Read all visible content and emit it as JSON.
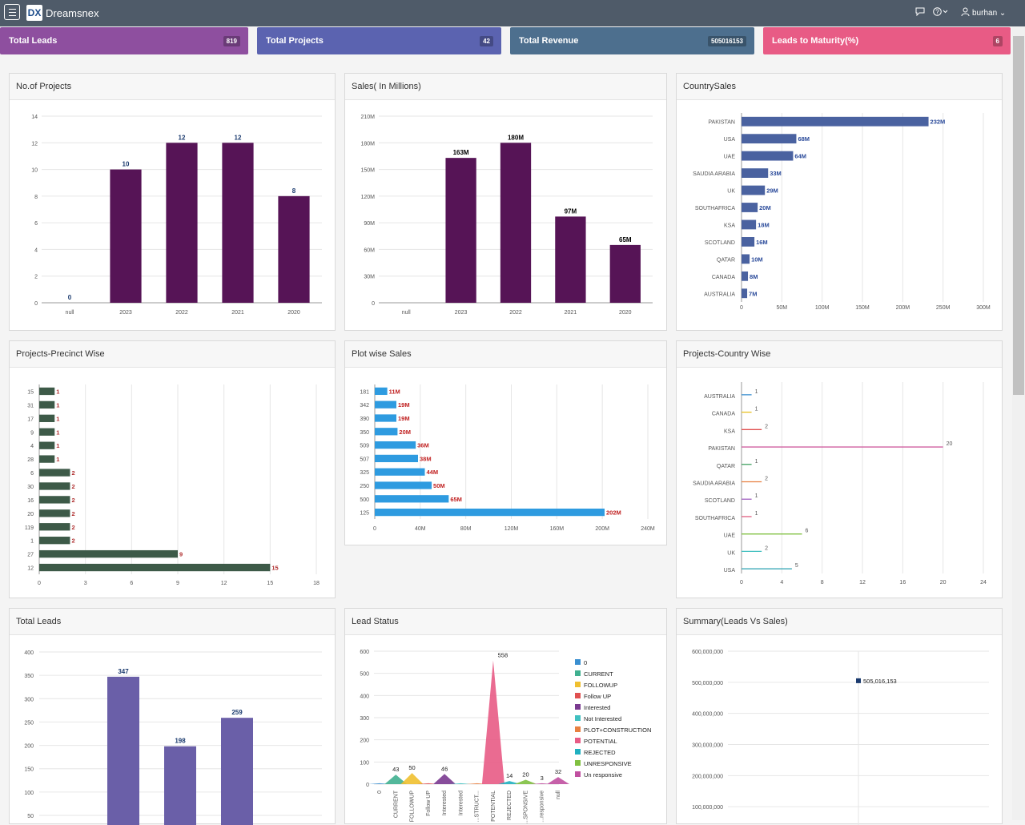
{
  "header": {
    "brand": "Dreamsnex",
    "logo_text": "DX",
    "user": "burhan",
    "icons": [
      "menu-icon",
      "chat-icon",
      "help-icon",
      "user-icon"
    ]
  },
  "kpis": [
    {
      "label": "Total Leads",
      "value": "819",
      "color": "#8e4f9f"
    },
    {
      "label": "Total Projects",
      "value": "42",
      "color": "#5b63b0"
    },
    {
      "label": "Total Revenue",
      "value": "505016153",
      "color": "#4d6f8e"
    },
    {
      "label": "Leads to Maturity(%)",
      "value": "6",
      "color": "#e85b85"
    }
  ],
  "panels": {
    "projects": "No.of Projects",
    "sales": "Sales( In Millions)",
    "country_sales": "CountrySales",
    "precinct": "Projects-Precinct Wise",
    "plot_sales": "Plot wise Sales",
    "country_projects": "Projects-Country Wise",
    "total_leads": "Total Leads",
    "lead_status": "Lead Status",
    "summary": "Summary(Leads Vs Sales)"
  },
  "chart_data": [
    {
      "id": "projects",
      "type": "bar",
      "categories": [
        "null",
        "2023",
        "2022",
        "2021",
        "2020"
      ],
      "values": [
        0,
        10,
        12,
        12,
        8
      ],
      "labels": [
        "0",
        "10",
        "12",
        "12",
        "8"
      ],
      "ylim": [
        0,
        14
      ],
      "yticks": [
        "0",
        "2",
        "4",
        "6",
        "8",
        "10",
        "12",
        "14"
      ],
      "color": "#561456",
      "label_color": "#1a3a6e"
    },
    {
      "id": "sales",
      "type": "bar",
      "categories": [
        "null",
        "2023",
        "2022",
        "2021",
        "2020"
      ],
      "values": [
        0,
        163,
        180,
        97,
        65
      ],
      "labels": [
        "",
        "163M",
        "180M",
        "97M",
        "65M"
      ],
      "ylim": [
        0,
        210
      ],
      "yticks": [
        "0",
        "30M",
        "60M",
        "90M",
        "120M",
        "150M",
        "180M",
        "210M"
      ],
      "color": "#561456",
      "label_color": "#000000"
    },
    {
      "id": "country_sales",
      "type": "bar",
      "orientation": "horizontal",
      "categories": [
        "PAKISTAN",
        "USA",
        "UAE",
        "SAUDIA ARABIA",
        "UK",
        "SOUTHAFRICA",
        "KSA",
        "SCOTLAND",
        "QATAR",
        "CANADA",
        "AUSTRALIA"
      ],
      "values": [
        232,
        68,
        64,
        33,
        29,
        20,
        18,
        16,
        10,
        8,
        7
      ],
      "labels": [
        "232M",
        "68M",
        "64M",
        "33M",
        "29M",
        "20M",
        "18M",
        "16M",
        "10M",
        "8M",
        "7M"
      ],
      "xlim": [
        0,
        300
      ],
      "xticks": [
        "0",
        "50M",
        "100M",
        "150M",
        "200M",
        "250M",
        "300M"
      ],
      "color": "#4a62a0",
      "label_color": "#2a4a9a"
    },
    {
      "id": "precinct",
      "type": "bar",
      "orientation": "horizontal",
      "categories": [
        "15",
        "31",
        "17",
        "9",
        "4",
        "28",
        "6",
        "30",
        "16",
        "20",
        "119",
        "1",
        "27",
        "12"
      ],
      "values": [
        1,
        1,
        1,
        1,
        1,
        1,
        2,
        2,
        2,
        2,
        2,
        2,
        9,
        15
      ],
      "labels": [
        "1",
        "1",
        "1",
        "1",
        "1",
        "1",
        "2",
        "2",
        "2",
        "2",
        "2",
        "2",
        "9",
        "15"
      ],
      "xlim": [
        0,
        18
      ],
      "xticks": [
        "0",
        "3",
        "6",
        "9",
        "12",
        "15",
        "18"
      ],
      "color": "#3d5a48",
      "label_color": "#b03030"
    },
    {
      "id": "plot_sales",
      "type": "bar",
      "orientation": "horizontal",
      "categories": [
        "181",
        "342",
        "390",
        "350",
        "509",
        "507",
        "325",
        "250",
        "500",
        "125"
      ],
      "values": [
        11,
        19,
        19,
        20,
        36,
        38,
        44,
        50,
        65,
        202
      ],
      "labels": [
        "11M",
        "19M",
        "19M",
        "20M",
        "36M",
        "38M",
        "44M",
        "50M",
        "65M",
        "202M"
      ],
      "xlim": [
        0,
        240
      ],
      "xticks": [
        "0",
        "40M",
        "80M",
        "120M",
        "160M",
        "200M",
        "240M"
      ],
      "color": "#2e9be0",
      "label_color": "#c02020"
    },
    {
      "id": "country_projects",
      "type": "line",
      "orientation": "horizontal",
      "categories": [
        "AUSTRALIA",
        "CANADA",
        "KSA",
        "PAKISTAN",
        "QATAR",
        "SAUDIA ARABIA",
        "SCOTLAND",
        "SOUTHAFRICA",
        "UAE",
        "UK",
        "USA"
      ],
      "values": [
        1,
        1,
        2,
        20,
        1,
        2,
        1,
        1,
        6,
        2,
        5
      ],
      "labels": [
        "1",
        "1",
        "2",
        "20",
        "1",
        "2",
        "1",
        "1",
        "6",
        "2",
        "5"
      ],
      "colors": [
        "#3a8fd0",
        "#e8c020",
        "#e05050",
        "#d060a0",
        "#40a060",
        "#e88040",
        "#a060c0",
        "#e06080",
        "#80c040",
        "#40c0c0",
        "#2aa0b0"
      ],
      "xlim": [
        0,
        24
      ],
      "xticks": [
        "0",
        "4",
        "8",
        "12",
        "16",
        "20",
        "24"
      ]
    },
    {
      "id": "total_leads",
      "type": "bar",
      "categories": [
        "",
        "",
        ""
      ],
      "values": [
        347,
        198,
        259
      ],
      "labels": [
        "347",
        "198",
        "259"
      ],
      "ylim": [
        0,
        400
      ],
      "yticks": [
        "50",
        "100",
        "150",
        "200",
        "250",
        "300",
        "350",
        "400"
      ],
      "color": "#6a5fa8",
      "label_color": "#1a3a6e"
    },
    {
      "id": "lead_status",
      "type": "area",
      "categories": [
        "0",
        "CURRENT",
        "FOLLOWUP",
        "Follow UP",
        "Interested",
        "Not Interested",
        "PLOT+CONSTRUCT...",
        "POTENTIAL",
        "REJECTED",
        "UNRESPONSIVE",
        "Un responsive",
        "null"
      ],
      "values": [
        0,
        43,
        50,
        0,
        46,
        0,
        1,
        558,
        14,
        20,
        3,
        32
      ],
      "labels": [
        "",
        "43",
        "50",
        "",
        "46",
        "",
        "",
        "558",
        "14",
        "20",
        "3",
        "32"
      ],
      "colors": [
        "#3a8fd0",
        "#40b090",
        "#f0c030",
        "#e05050",
        "#7a3a90",
        "#40c0c0",
        "#e88040",
        "#e85b85",
        "#20b0c0",
        "#80c040",
        "#c050a0",
        "#c050a0"
      ],
      "ylim": [
        0,
        600
      ],
      "yticks": [
        "0",
        "100",
        "200",
        "300",
        "400",
        "500",
        "600"
      ],
      "xtick_labels": [
        "0",
        "CURRENT",
        "FOLLOWUP",
        "Follow UP",
        "Interested",
        "Interested",
        "...STRUCT...",
        "POTENTIAL",
        "REJECTED",
        "...SPONSIVE",
        "...responsive",
        "null"
      ],
      "legend": [
        "0",
        "CURRENT",
        "FOLLOWUP",
        "Follow UP",
        "Interested",
        "Not Interested",
        "PLOT+CONSTRUCTION",
        "POTENTIAL",
        "REJECTED",
        "UNRESPONSIVE",
        "Un responsive"
      ]
    },
    {
      "id": "summary",
      "type": "scatter",
      "values": [
        505016153
      ],
      "labels": [
        "505,016,153"
      ],
      "yticks": [
        "100,000,000",
        "200,000,000",
        "300,000,000",
        "400,000,000",
        "500,000,000",
        "600,000,000"
      ],
      "ylim": [
        0,
        600000000
      ],
      "color": "#1a3a6e"
    }
  ]
}
